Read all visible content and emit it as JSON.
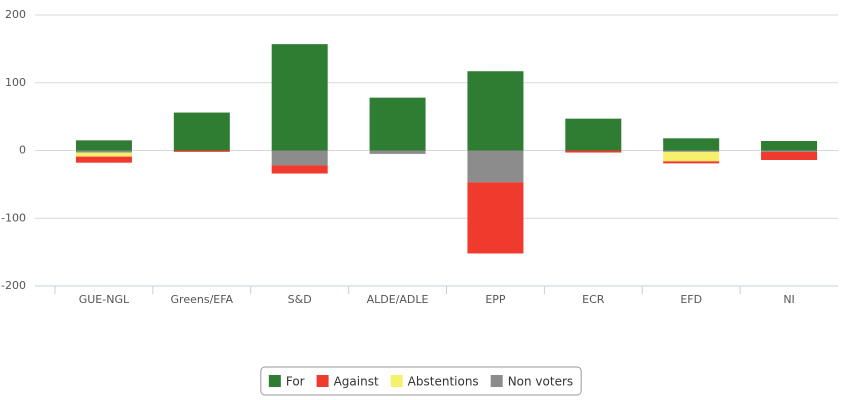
{
  "chart_data": {
    "type": "bar",
    "stacked": true,
    "categories": [
      "GUE-NGL",
      "Greens/EFA",
      "S&D",
      "ALDE/ADLE",
      "EPP",
      "ECR",
      "EFD",
      "NI"
    ],
    "series": [
      {
        "name": "For",
        "color": "#2e7d32",
        "values": [
          15,
          56,
          157,
          78,
          117,
          47,
          18,
          14
        ]
      },
      {
        "name": "Against",
        "color": "#f03a2e",
        "values": [
          -9,
          -2,
          -12,
          0,
          -105,
          -3,
          -3,
          -12
        ]
      },
      {
        "name": "Abstentions",
        "color": "#f7f06a",
        "values": [
          -6,
          0,
          0,
          0,
          0,
          0,
          -14,
          0
        ]
      },
      {
        "name": "Non voters",
        "color": "#8c8c8c",
        "values": [
          -3,
          0,
          -22,
          -5,
          -47,
          0,
          -2,
          -2
        ]
      }
    ],
    "ylim": [
      -200,
      200
    ],
    "yticks": [
      -200,
      -100,
      0,
      100,
      200
    ],
    "grid": true,
    "legend": "bottom"
  }
}
